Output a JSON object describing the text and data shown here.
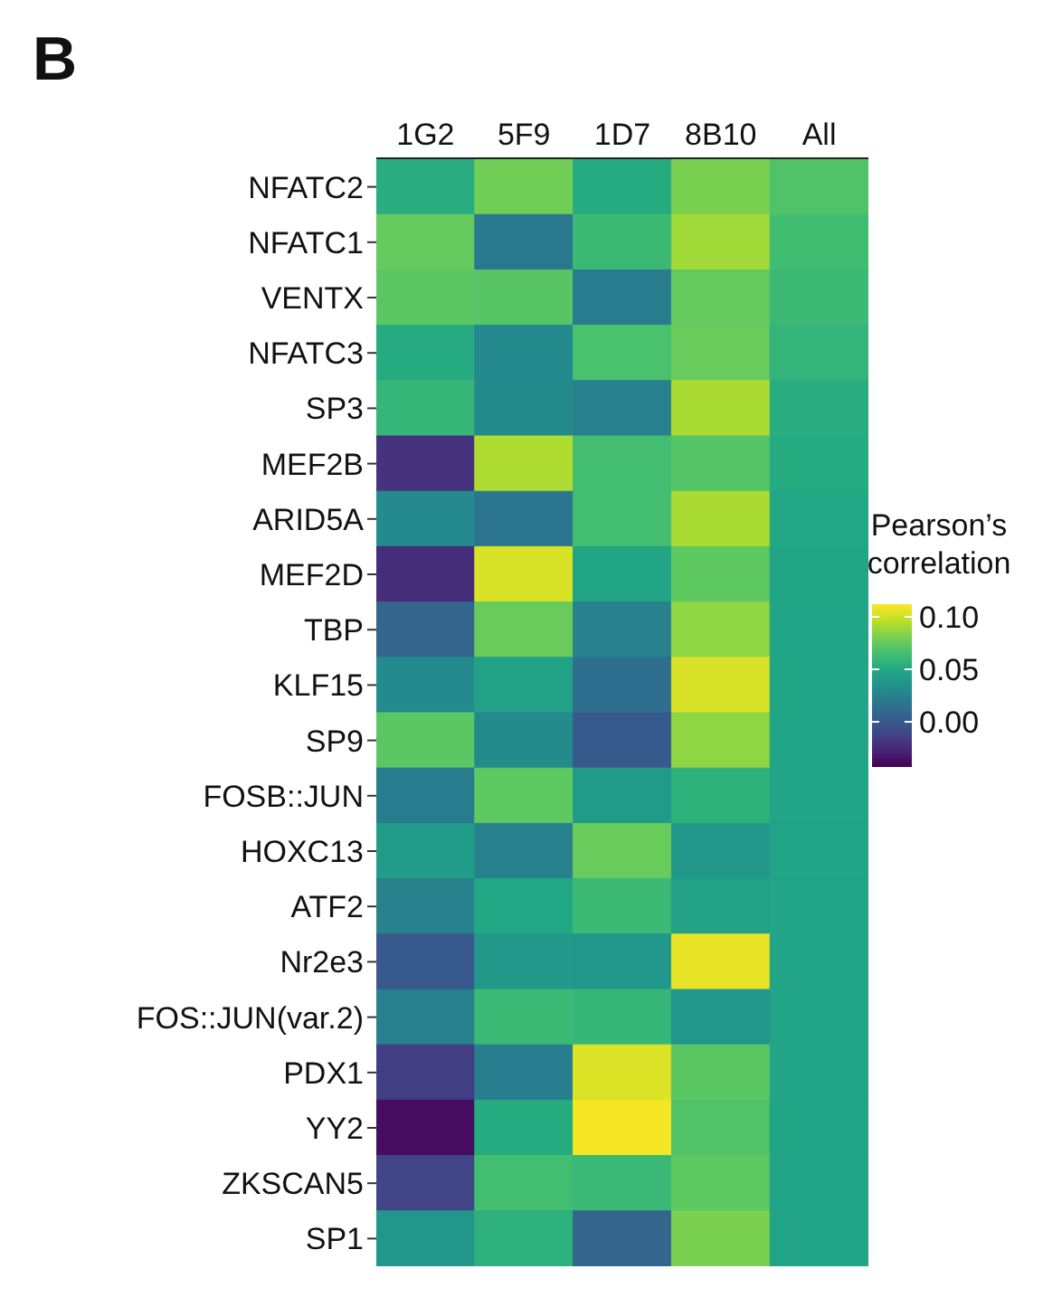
{
  "chart_data": {
    "type": "heatmap",
    "title": "B",
    "clabel": "Pearson’s correlation",
    "categories": [
      "1G2",
      "5F9",
      "1D7",
      "8B10",
      "All"
    ],
    "y_categories": [
      "NFATC2",
      "NFATC1",
      "VENTX",
      "NFATC3",
      "SP3",
      "MEF2B",
      "ARID5A",
      "MEF2D",
      "TBP",
      "KLF15",
      "SP9",
      "FOSB::JUN",
      "HOXC13",
      "ATF2",
      "Nr2e3",
      "FOS::JUN(var.2)",
      "PDX1",
      "YY2",
      "ZKSCAN5",
      "SP1"
    ],
    "cells": [
      [
        0.053,
        0.078,
        0.052,
        0.081,
        0.069
      ],
      [
        0.075,
        0.019,
        0.062,
        0.09,
        0.064
      ],
      [
        0.072,
        0.071,
        0.021,
        0.075,
        0.062
      ],
      [
        0.052,
        0.03,
        0.067,
        0.076,
        0.058
      ],
      [
        0.059,
        0.031,
        0.024,
        0.092,
        0.053
      ],
      [
        -0.02,
        0.093,
        0.065,
        0.07,
        0.052
      ],
      [
        0.03,
        0.017,
        0.065,
        0.092,
        0.05
      ],
      [
        -0.023,
        0.103,
        0.048,
        0.073,
        0.048
      ],
      [
        0.007,
        0.076,
        0.025,
        0.086,
        0.047
      ],
      [
        0.03,
        0.045,
        0.013,
        0.103,
        0.047
      ],
      [
        0.072,
        0.031,
        0.0,
        0.086,
        0.047
      ],
      [
        0.021,
        0.073,
        0.041,
        0.056,
        0.047
      ],
      [
        0.042,
        0.025,
        0.076,
        0.039,
        0.047
      ],
      [
        0.025,
        0.05,
        0.062,
        0.045,
        0.047
      ],
      [
        0.0,
        0.039,
        0.038,
        0.107,
        0.047
      ],
      [
        0.024,
        0.062,
        0.059,
        0.038,
        0.047
      ],
      [
        -0.015,
        0.022,
        0.104,
        0.072,
        0.047
      ],
      [
        -0.038,
        0.052,
        0.11,
        0.069,
        0.047
      ],
      [
        -0.012,
        0.065,
        0.061,
        0.073,
        0.047
      ],
      [
        0.038,
        0.055,
        0.007,
        0.081,
        0.047
      ]
    ],
    "clim": [
      -0.043,
      0.112
    ],
    "cticks": [
      {
        "value": 0,
        "label": "0.00"
      },
      {
        "value": 0.05,
        "label": "0.05"
      },
      {
        "value": 0.1,
        "label": "0.10"
      }
    ]
  }
}
